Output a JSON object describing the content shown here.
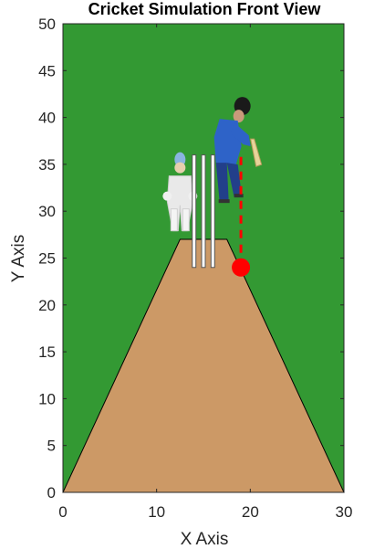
{
  "chart_data": {
    "type": "scatter",
    "title": "Cricket Simulation Front View",
    "xlabel": "X Axis",
    "ylabel": "Y Axis",
    "xlim": [
      0,
      30
    ],
    "ylim": [
      0,
      50
    ],
    "xticks": [
      0,
      10,
      20,
      30
    ],
    "yticks": [
      0,
      5,
      10,
      15,
      20,
      25,
      30,
      35,
      40,
      45,
      50
    ],
    "grid": false,
    "background_color": "#339933",
    "pitch": {
      "color": "#cc9966",
      "polygon": [
        [
          0,
          0
        ],
        [
          30,
          0
        ],
        [
          17.5,
          27
        ],
        [
          12.5,
          27
        ]
      ]
    },
    "stumps": {
      "color": "#ffffff",
      "x": [
        14,
        15,
        16
      ],
      "y_range": [
        24,
        36
      ]
    },
    "ball": {
      "x": 19,
      "y": 24,
      "color": "#ff0000"
    },
    "trajectory": {
      "style": "dashed",
      "color": "#ff0000",
      "x": [
        19,
        19
      ],
      "y": [
        24,
        36
      ]
    },
    "figures": [
      {
        "role": "wicketkeeper",
        "x": 12.5,
        "y": 32
      },
      {
        "role": "batsman",
        "x": 17.5,
        "y": 34
      }
    ]
  }
}
